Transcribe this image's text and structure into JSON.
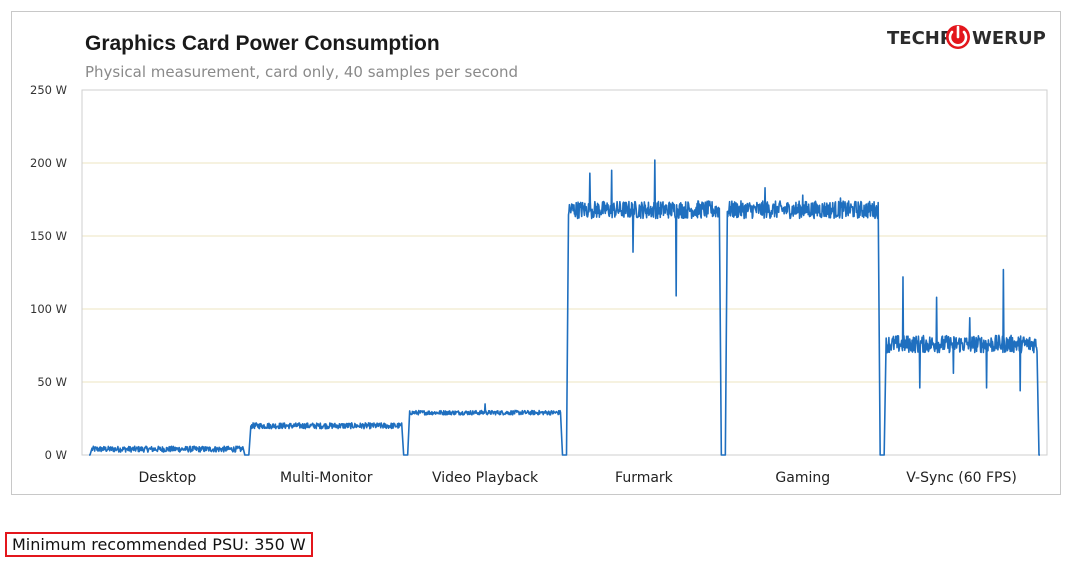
{
  "logo": {
    "prefix": "TECHP",
    "suffix": "WERUP"
  },
  "colors": {
    "series": "#1f6fbf",
    "grid": "#ece5c2",
    "logo_red": "#e3161c",
    "psu_border": "#e3161c"
  },
  "psu_note": "Minimum recommended PSU: 350 W",
  "chart_data": {
    "type": "line",
    "title": "Graphics  Card Power Consumption",
    "subtitle": "Physical measurement, card only, 40 samples per second",
    "ylim": [
      0,
      250
    ],
    "yticks": [
      0,
      50,
      100,
      150,
      200,
      250
    ],
    "ytick_labels": [
      "0 W",
      "50 W",
      "100 W",
      "150 W",
      "200 W",
      "250 W"
    ],
    "grid": true,
    "categories": [
      "Desktop",
      "Multi-Monitor",
      "Video Playback",
      "Furmark",
      "Gaming",
      "V-Sync (60 FPS)"
    ],
    "segments": [
      {
        "label": "Desktop",
        "mean_w": 4,
        "noise_w": 2,
        "spikes_w": []
      },
      {
        "label": "Multi-Monitor",
        "mean_w": 20,
        "noise_w": 2,
        "spikes_w": []
      },
      {
        "label": "Video Playback",
        "mean_w": 29,
        "noise_w": 1.5,
        "spikes_w": [
          35
        ]
      },
      {
        "label": "Furmark",
        "mean_w": 168,
        "noise_w": 6,
        "spikes_w": [
          193,
          195,
          139,
          202,
          109,
          174
        ]
      },
      {
        "label": "Gaming",
        "mean_w": 168,
        "noise_w": 6,
        "spikes_w": [
          183,
          178,
          176
        ]
      },
      {
        "label": "V-Sync (60 FPS)",
        "mean_w": 76,
        "noise_w": 6,
        "spikes_w": [
          122,
          46,
          108,
          56,
          94,
          46,
          127,
          44
        ]
      }
    ]
  }
}
